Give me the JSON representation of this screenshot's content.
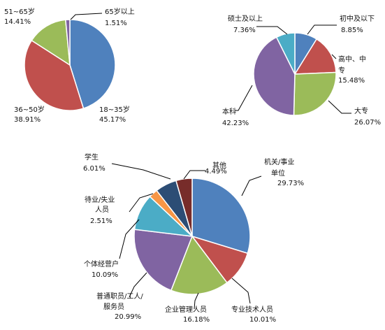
{
  "chart_data": [
    {
      "type": "pie",
      "title": "",
      "slices": [
        {
          "label": "18~35岁",
          "value": 45.17,
          "value_text": "45.17%",
          "color": "#4F81BD"
        },
        {
          "label": "36~50岁",
          "value": 38.91,
          "value_text": "38.91%",
          "color": "#C0504D"
        },
        {
          "label": "51~65岁",
          "value": 14.41,
          "value_text": "14.41%",
          "color": "#9BBB59"
        },
        {
          "label": "65岁以上",
          "value": 1.51,
          "value_text": "1.51%",
          "color": "#8064A2"
        }
      ]
    },
    {
      "type": "pie",
      "title": "",
      "slices": [
        {
          "label": "初中及以下",
          "value": 8.85,
          "value_text": "8.85%",
          "color": "#4F81BD"
        },
        {
          "label": "高中、中专",
          "value": 15.48,
          "value_text": "15.48%",
          "color": "#C0504D"
        },
        {
          "label": "大专",
          "value": 26.07,
          "value_text": "26.07%",
          "color": "#9BBB59"
        },
        {
          "label": "本科",
          "value": 42.23,
          "value_text": "42.23%",
          "color": "#8064A2"
        },
        {
          "label": "硕士及以上",
          "value": 7.36,
          "value_text": "7.36%",
          "color": "#4BACC6"
        }
      ]
    },
    {
      "type": "pie",
      "title": "",
      "slices": [
        {
          "label": "机关/事业单位",
          "value": 29.73,
          "value_text": "29.73%",
          "color": "#4F81BD"
        },
        {
          "label": "专业技术人员",
          "value": 10.01,
          "value_text": "10.01%",
          "color": "#C0504D"
        },
        {
          "label": "企业管理人员",
          "value": 16.18,
          "value_text": "16.18%",
          "color": "#9BBB59"
        },
        {
          "label": "普通职员/工人/服务员",
          "value": 20.99,
          "value_text": "20.99%",
          "color": "#8064A2"
        },
        {
          "label": "个体经营户",
          "value": 10.09,
          "value_text": "10.09%",
          "color": "#4BACC6"
        },
        {
          "label": "待业/失业人员",
          "value": 2.51,
          "value_text": "2.51%",
          "color": "#F79646"
        },
        {
          "label": "学生",
          "value": 6.01,
          "value_text": "6.01%",
          "color": "#2C4D75"
        },
        {
          "label": "其他",
          "value": 4.49,
          "value_text": "4.49%",
          "color": "#772C2A"
        }
      ]
    }
  ]
}
